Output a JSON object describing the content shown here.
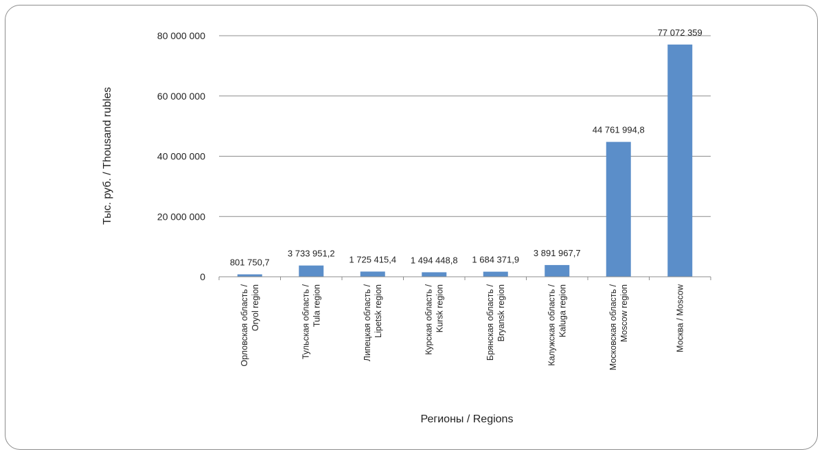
{
  "chart_data": {
    "type": "bar",
    "categories": [
      [
        "Орловская область /",
        "Oryol region"
      ],
      [
        "Тульская область /",
        "Tula region"
      ],
      [
        "Липецкая область /",
        "Lipetsk region"
      ],
      [
        "Курская область /",
        "Kursk region"
      ],
      [
        "Брянская область /",
        "Bryansk region"
      ],
      [
        "Калужская область /",
        "Kaluga region"
      ],
      [
        "Московская область /",
        "Moscow region"
      ],
      [
        "Москва / Moscow"
      ]
    ],
    "values": [
      801750.7,
      3733951.2,
      1725415.4,
      1494448.8,
      1684371.9,
      3891967.7,
      44761994.8,
      77072359
    ],
    "data_labels": [
      "801 750,7",
      "3 733 951,2",
      "1 725 415,4",
      "1 494 448,8",
      "1 684 371,9",
      "3 891 967,7",
      "44 761 994,8",
      "77 072 359"
    ],
    "ylim": [
      0,
      80000000
    ],
    "yticks": [
      0,
      20000000,
      40000000,
      60000000,
      80000000
    ],
    "ytick_labels": [
      "0",
      "20 000 000",
      "40 000 000",
      "60 000 000",
      "80 000 000"
    ],
    "xlabel": "Регионы / Regions",
    "ylabel": "Тыс. руб. / Thousand rubles",
    "grid": true,
    "bar_color": "#5b8ec9",
    "gridline_color": "#8c8c8c"
  }
}
